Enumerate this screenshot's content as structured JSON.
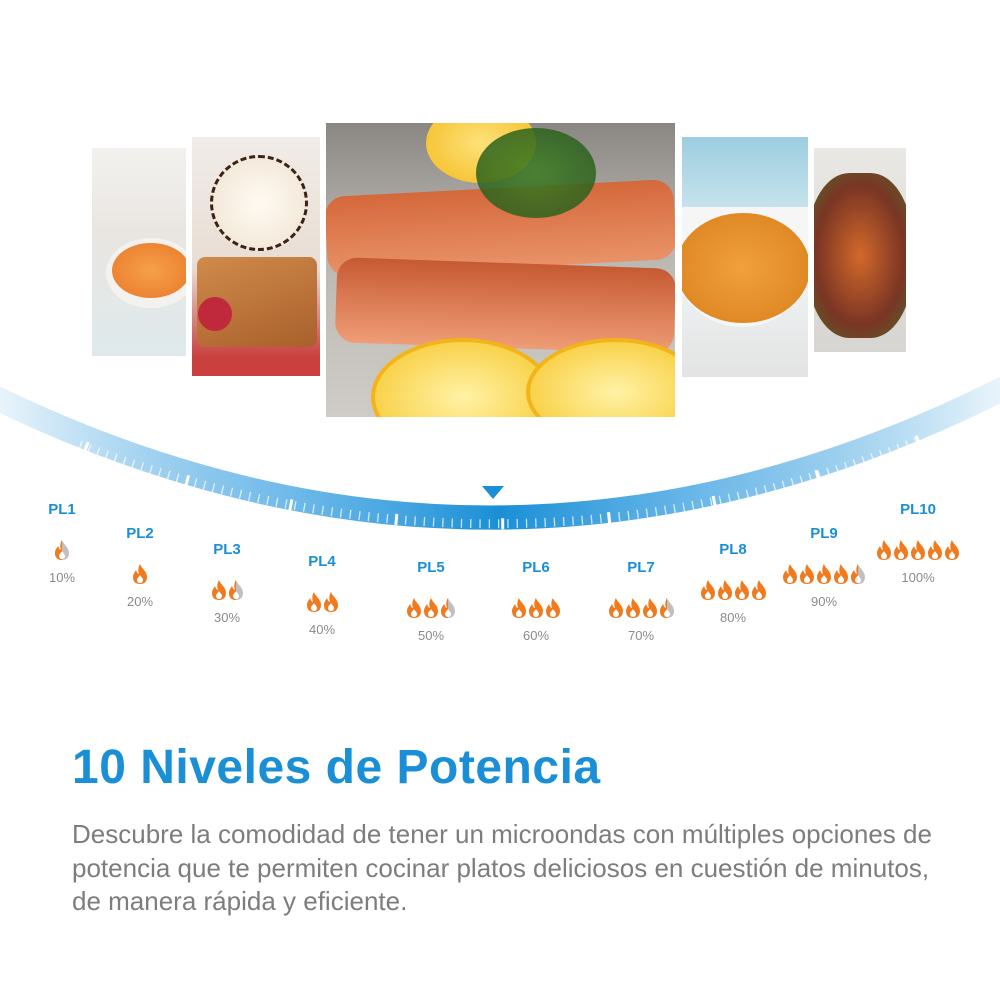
{
  "title": "10 Niveles de Potencia",
  "description": "Descubre la comodidad de tener un microondas con múltiples opciones de potencia que te permiten cocinar platos deliciosos en cuestión de minutos, de manera rápida y eficiente.",
  "colors": {
    "accent": "#1a8fd6",
    "flame": "#f07a1e",
    "flame_inactive": "#c4bfbd",
    "percent_text": "#8a8a8a"
  },
  "photos": [
    {
      "name": "pumpkin-puree"
    },
    {
      "name": "waffles-ice-cream"
    },
    {
      "name": "grilled-salmon-lemon"
    },
    {
      "name": "soup-bowl"
    },
    {
      "name": "roasted-vegetables"
    }
  ],
  "dial": {
    "indicator_icon": "triangle-down-icon"
  },
  "levels": [
    {
      "label": "PL1",
      "percent": "10%",
      "flames_full": 0,
      "half": true
    },
    {
      "label": "PL2",
      "percent": "20%",
      "flames_full": 1,
      "half": false
    },
    {
      "label": "PL3",
      "percent": "30%",
      "flames_full": 1,
      "half": true
    },
    {
      "label": "PL4",
      "percent": "40%",
      "flames_full": 2,
      "half": false
    },
    {
      "label": "PL5",
      "percent": "50%",
      "flames_full": 2,
      "half": true
    },
    {
      "label": "PL6",
      "percent": "60%",
      "flames_full": 3,
      "half": false
    },
    {
      "label": "PL7",
      "percent": "70%",
      "flames_full": 3,
      "half": true
    },
    {
      "label": "PL8",
      "percent": "80%",
      "flames_full": 4,
      "half": false
    },
    {
      "label": "PL9",
      "percent": "90%",
      "flames_full": 4,
      "half": true
    },
    {
      "label": "PL10",
      "percent": "100%",
      "flames_full": 5,
      "half": false
    }
  ]
}
